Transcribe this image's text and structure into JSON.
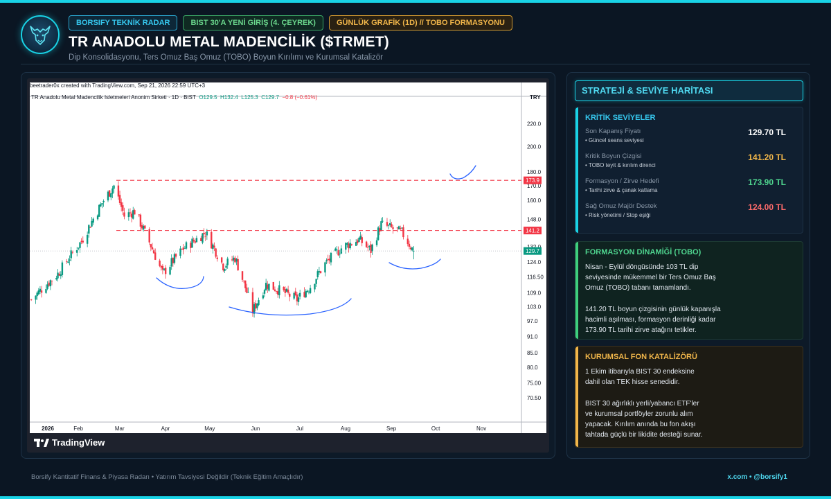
{
  "header": {
    "badges": [
      "BORSIFY TEKNİK RADAR",
      "BIST 30'A YENİ GİRİŞ (4. ÇEYREK)",
      "GÜNLÜK GRAFİK (1D) // TOBO FORMASYONU"
    ],
    "title": "TR ANADOLU METAL MADENCİLİK ($TRMET)",
    "subtitle": "Dip Konsolidasyonu, Ters Omuz Baş Omuz (TOBO) Boyun Kırılımı ve Kurumsal Katalizör"
  },
  "logo": {
    "icon": "bull-head-icon"
  },
  "tradingview": {
    "credit": "beetrader0x created with TradingView.com, Sep 21, 2026 22:59 UTC+3",
    "symbol": "TR Anadolu Metal Madencilik Isletmeleri Anonim Sirketi · 1D · BIST",
    "o": "O129.5",
    "h": "H132.4",
    "l": "L125.3",
    "c": "C129.7",
    "change": "−0.8 (−0.61%)",
    "currency": "TRY",
    "brand": "TradingView"
  },
  "chart_data": {
    "type": "candlestick",
    "x_ticks": [
      "2026",
      "Feb",
      "Mar",
      "Apr",
      "May",
      "Jun",
      "Jul",
      "Aug",
      "Sep",
      "Oct",
      "Nov"
    ],
    "y_ticks": [
      220.0,
      200.0,
      180.0,
      170.0,
      160.0,
      148.0,
      132.0,
      124.0,
      116.5,
      109.0,
      103.0,
      97.0,
      91.0,
      85.0,
      80.0,
      75.0,
      70.5
    ],
    "y_range": [
      66,
      230
    ],
    "y_scale": "log",
    "levels": [
      {
        "label": "173.9",
        "value": 173.9,
        "color": "#f23645"
      },
      {
        "label": "141.2",
        "value": 141.2,
        "color": "#f23645"
      },
      {
        "label": "129.7",
        "value": 129.7,
        "color": "#089981"
      }
    ],
    "anchor_closes": [
      {
        "date": "2026-01-02",
        "close": 106
      },
      {
        "date": "2026-01-20",
        "close": 118
      },
      {
        "date": "2026-02-05",
        "close": 135
      },
      {
        "date": "2026-02-20",
        "close": 160
      },
      {
        "date": "2026-02-27",
        "close": 170
      },
      {
        "date": "2026-03-06",
        "close": 150
      },
      {
        "date": "2026-03-13",
        "close": 153
      },
      {
        "date": "2026-03-20",
        "close": 140
      },
      {
        "date": "2026-04-01",
        "close": 118
      },
      {
        "date": "2026-04-15",
        "close": 131
      },
      {
        "date": "2026-04-30",
        "close": 140
      },
      {
        "date": "2026-05-12",
        "close": 122
      },
      {
        "date": "2026-05-20",
        "close": 126
      },
      {
        "date": "2026-06-01",
        "close": 101
      },
      {
        "date": "2026-06-10",
        "close": 113
      },
      {
        "date": "2026-06-20",
        "close": 110
      },
      {
        "date": "2026-07-01",
        "close": 106
      },
      {
        "date": "2026-07-10",
        "close": 112
      },
      {
        "date": "2026-07-20",
        "close": 123
      },
      {
        "date": "2026-08-01",
        "close": 132
      },
      {
        "date": "2026-08-12",
        "close": 136
      },
      {
        "date": "2026-08-20",
        "close": 130
      },
      {
        "date": "2026-08-27",
        "close": 145
      },
      {
        "date": "2026-09-10",
        "close": 140
      },
      {
        "date": "2026-09-18",
        "close": 129.7
      }
    ]
  },
  "side": {
    "title": "STRATEJİ & SEVİYE HARİTASI",
    "levels_title": "KRİTİK SEVİYELER",
    "levels": [
      {
        "name": "Son Kapanış Fiyatı",
        "note": "• Güncel seans seviyesi",
        "value": "129.70 TL",
        "color": "#ffffff"
      },
      {
        "name": "Kritik Boyun Çizgisi",
        "note": "• TOBO teyit & kırılım direnci",
        "value": "141.20 TL",
        "color": "#f1b64a"
      },
      {
        "name": "Formasyon / Zirve Hedefi",
        "note": "• Tarihi zirve & çanak katlama",
        "value": "173.90 TL",
        "color": "#4fd58f"
      },
      {
        "name": "Sağ Omuz Majör Destek",
        "note": "• Risk yönetimi / Stop eşiği",
        "value": "124.00 TL",
        "color": "#ff6b6b"
      }
    ],
    "formation_title": "FORMASYON DİNAMİĞİ (TOBO)",
    "formation_text": "Nisan - Eylül döngüsünde 103 TL dip\nseviyesinde mükemmel bir Ters Omuz Baş\nOmuz (TOBO) tabanı tamamlandı.\n\n141.20 TL boyun çizgisinin günlük kapanışla\nhacimli aşılması, formasyon derinliği kadar\n173.90 TL tarihi zirve atağını tetikler.",
    "catalyst_title": "KURUMSAL FON KATALİZÖRÜ",
    "catalyst_text": "1 Ekim itibarıyla BIST 30 endeksine\ndahil olan TEK hisse senedidir.\n\nBIST 30 ağırlıklı yerli/yabancı ETF'ler\nve kurumsal portföyler zorunlu alım\nyapacak. Kırılım anında bu fon akışı\ntahtada güçlü bir likidite desteği sunar."
  },
  "footer": {
    "left": "Borsify Kantitatif Finans & Piyasa Radarı  •  Yatırım Tavsiyesi Değildir (Teknik Eğitim Amaçlıdır)",
    "right": "x.com • @borsify1"
  }
}
